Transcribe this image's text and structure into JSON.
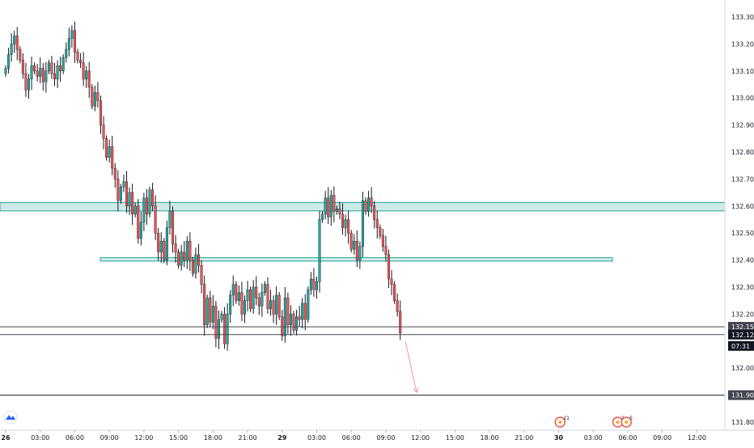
{
  "chart_data": {
    "type": "candlestick",
    "title": "",
    "xlabel": "",
    "ylabel": "",
    "ylim": [
      131.77,
      133.32
    ],
    "y_ticks": [
      133.3,
      133.2,
      133.1,
      133.0,
      132.9,
      132.8,
      132.7,
      132.6,
      132.5,
      132.4,
      132.3,
      132.2,
      132.0,
      131.8
    ],
    "y_tick_labels": [
      "133.300",
      "133.200",
      "133.100",
      "133.000",
      "132.900",
      "132.800",
      "132.700",
      "132.600",
      "132.500",
      "132.400",
      "132.300",
      "132.200",
      "132.000",
      "131.800"
    ],
    "x_tick_labels": [
      {
        "label": "26",
        "t": 0
      },
      {
        "label": "03:00",
        "t": 12
      },
      {
        "label": "06:00",
        "t": 24
      },
      {
        "label": "09:00",
        "t": 36
      },
      {
        "label": "12:00",
        "t": 48
      },
      {
        "label": "15:00",
        "t": 60
      },
      {
        "label": "18:00",
        "t": 72
      },
      {
        "label": "21:00",
        "t": 84
      },
      {
        "label": "29",
        "t": 96
      },
      {
        "label": "03:00",
        "t": 108
      },
      {
        "label": "06:00",
        "t": 120
      },
      {
        "label": "09:00",
        "t": 132
      },
      {
        "label": "12:00",
        "t": 144
      },
      {
        "label": "15:00",
        "t": 156
      },
      {
        "label": "18:00",
        "t": 168
      },
      {
        "label": "21:00",
        "t": 180
      },
      {
        "label": "30",
        "t": 192
      },
      {
        "label": "03:00",
        "t": 204
      },
      {
        "label": "06:00",
        "t": 216
      },
      {
        "label": "09:00",
        "t": 228
      },
      {
        "label": "12:00",
        "t": 240
      }
    ],
    "candles_close": [
      133.11,
      133.16,
      133.2,
      133.23,
      133.18,
      133.14,
      133.09,
      133.03,
      133.07,
      133.12,
      133.1,
      133.08,
      133.11,
      133.06,
      133.1,
      133.13,
      133.09,
      133.07,
      133.12,
      133.1,
      133.15,
      133.18,
      133.22,
      133.25,
      133.17,
      133.14,
      133.13,
      133.07,
      133.1,
      133.04,
      132.97,
      133.02,
      132.99,
      132.9,
      132.85,
      132.78,
      132.82,
      132.74,
      132.7,
      132.62,
      132.67,
      132.69,
      132.6,
      132.65,
      132.57,
      132.6,
      132.48,
      132.54,
      132.63,
      132.57,
      132.66,
      132.6,
      132.5,
      132.43,
      132.47,
      132.4,
      132.52,
      132.58,
      132.46,
      132.43,
      132.38,
      132.43,
      132.4,
      132.47,
      132.4,
      132.35,
      132.42,
      132.38,
      132.31,
      132.16,
      132.26,
      132.17,
      132.23,
      132.11,
      132.18,
      132.2,
      132.09,
      132.2,
      132.27,
      132.31,
      132.25,
      132.28,
      132.2,
      132.25,
      132.29,
      132.22,
      132.3,
      132.26,
      132.23,
      132.28,
      132.31,
      132.22,
      132.25,
      132.2,
      132.27,
      132.19,
      132.12,
      132.26,
      132.16,
      132.2,
      132.14,
      132.19,
      132.18,
      132.24,
      132.18,
      132.29,
      132.33,
      132.29,
      132.32,
      132.55,
      132.57,
      132.63,
      132.56,
      132.64,
      132.58,
      132.59,
      132.57,
      132.52,
      132.55,
      132.5,
      132.44,
      132.47,
      132.4,
      132.45,
      132.62,
      132.58,
      132.63,
      132.6,
      132.55,
      132.52,
      132.49,
      132.45,
      132.42,
      132.33,
      132.31,
      132.25,
      132.21,
      132.13
    ]
  },
  "levels": {
    "upper_zone": [
      132.582,
      132.613
    ],
    "lower_zone": [
      132.396,
      132.409
    ],
    "support_line": 131.9,
    "line_a": 132.153,
    "line_b": 132.124
  },
  "price_axis": {
    "line_a_label": "132.153",
    "current_price_label": "132.124",
    "countdown_label": "07:31",
    "support_label": "131.900"
  },
  "events": [
    {
      "badge": "21",
      "t": 192.5
    },
    {
      "badge": "2",
      "t": 212.5
    },
    {
      "badge": "5",
      "t": 215.5
    }
  ],
  "colors": {
    "up_candle": "#26a69a",
    "down_candle": "#ef5350",
    "zone_fill": "#b2dfdb",
    "zone_border": "#26a69a",
    "arrow": "#ef9a9a",
    "horizontal_line": "#434651"
  }
}
